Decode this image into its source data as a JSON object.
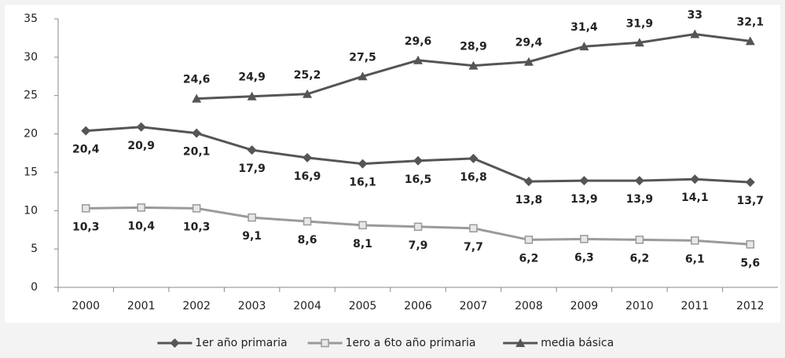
{
  "chart_data": {
    "type": "line",
    "categories": [
      "2000",
      "2001",
      "2002",
      "2003",
      "2004",
      "2005",
      "2006",
      "2007",
      "2008",
      "2009",
      "2010",
      "2011",
      "2012"
    ],
    "series": [
      {
        "name": "1er año primaria",
        "color": "#555555",
        "marker": "diamond",
        "values": [
          20.4,
          20.9,
          20.1,
          17.9,
          16.9,
          16.1,
          16.5,
          16.8,
          13.8,
          13.9,
          13.9,
          14.1,
          13.7
        ],
        "value_labels": [
          "20,4",
          "20,9",
          "20,1",
          "17,9",
          "16,9",
          "16,1",
          "16,5",
          "16,8",
          "13,8",
          "13,9",
          "13,9",
          "14,1",
          "13,7"
        ]
      },
      {
        "name": "1ero a 6to año primaria",
        "color": "#9a9a9a",
        "marker": "square",
        "values": [
          10.3,
          10.4,
          10.3,
          9.1,
          8.6,
          8.1,
          7.9,
          7.7,
          6.2,
          6.3,
          6.2,
          6.1,
          5.6
        ],
        "value_labels": [
          "10,3",
          "10,4",
          "10,3",
          "9,1",
          "8,6",
          "8,1",
          "7,9",
          "7,7",
          "6,2",
          "6,3",
          "6,2",
          "6,1",
          "5,6"
        ]
      },
      {
        "name": "media básica",
        "color": "#555555",
        "marker": "triangle",
        "values": [
          null,
          null,
          24.6,
          24.9,
          25.2,
          27.5,
          29.6,
          28.9,
          29.4,
          31.4,
          31.9,
          33,
          32.1
        ],
        "value_labels": [
          null,
          null,
          "24,6",
          "24,9",
          "25,2",
          "27,5",
          "29,6",
          "28,9",
          "29,4",
          "31,4",
          "31,9",
          "33",
          "32,1"
        ]
      }
    ],
    "ylim": [
      0,
      35
    ],
    "yticks": [
      0,
      5,
      10,
      15,
      20,
      25,
      30,
      35
    ],
    "grid": false,
    "legend": "bottom"
  }
}
